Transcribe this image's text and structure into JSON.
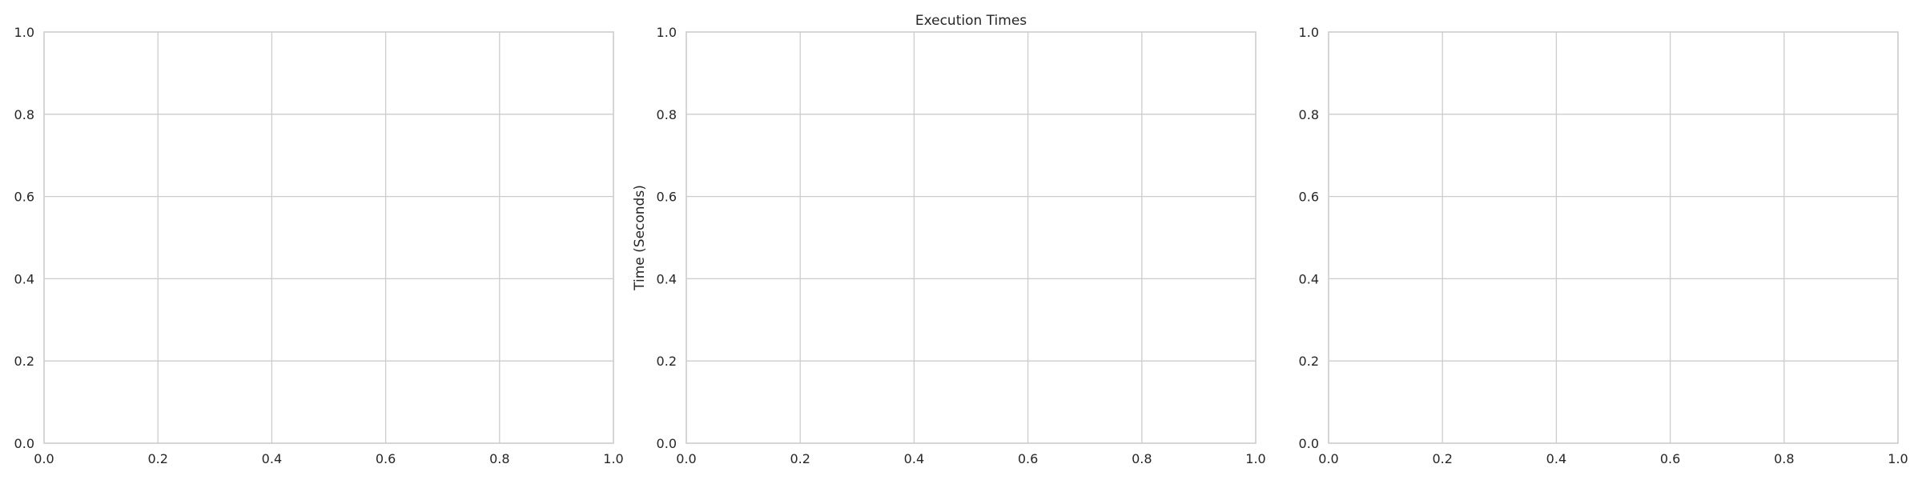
{
  "figure": {
    "background": "#ffffff",
    "grid_color": "#cccccc",
    "text_color": "#262626"
  },
  "chart_data": [
    {
      "type": "line",
      "title": "",
      "xlabel": "",
      "ylabel": "",
      "xlim": [
        0.0,
        1.0
      ],
      "ylim": [
        0.0,
        1.0
      ],
      "xticks": [
        "0.0",
        "0.2",
        "0.4",
        "0.6",
        "0.8",
        "1.0"
      ],
      "yticks": [
        "0.0",
        "0.2",
        "0.4",
        "0.6",
        "0.8",
        "1.0"
      ],
      "grid": true,
      "series": []
    },
    {
      "type": "line",
      "title": "Execution Times",
      "xlabel": "",
      "ylabel": "Time (Seconds)",
      "xlim": [
        0.0,
        1.0
      ],
      "ylim": [
        0.0,
        1.0
      ],
      "xticks": [
        "0.0",
        "0.2",
        "0.4",
        "0.6",
        "0.8",
        "1.0"
      ],
      "yticks": [
        "0.0",
        "0.2",
        "0.4",
        "0.6",
        "0.8",
        "1.0"
      ],
      "grid": true,
      "series": []
    },
    {
      "type": "line",
      "title": "",
      "xlabel": "",
      "ylabel": "",
      "xlim": [
        0.0,
        1.0
      ],
      "ylim": [
        0.0,
        1.0
      ],
      "xticks": [
        "0.0",
        "0.2",
        "0.4",
        "0.6",
        "0.8",
        "1.0"
      ],
      "yticks": [
        "0.0",
        "0.2",
        "0.4",
        "0.6",
        "0.8",
        "1.0"
      ],
      "grid": true,
      "series": []
    }
  ]
}
